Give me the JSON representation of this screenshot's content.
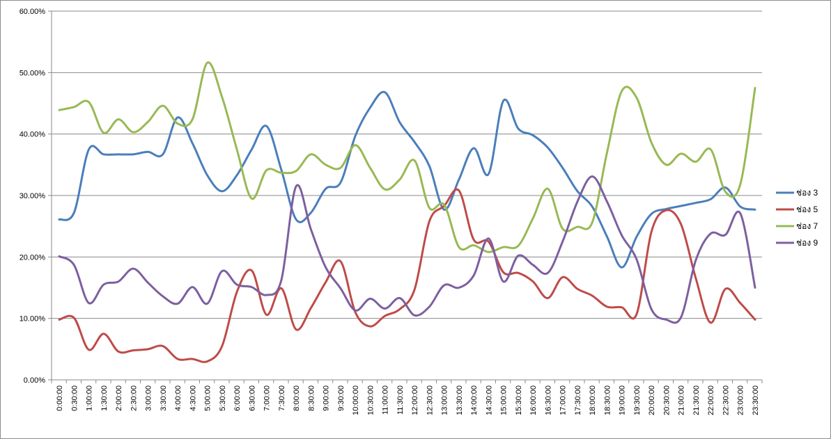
{
  "chart_data": {
    "type": "line",
    "smooth": true,
    "grid": true,
    "legend": "right",
    "ylim": [
      0,
      0.6
    ],
    "y_format": "percent_2dp",
    "y_ticks": [
      "0.00%",
      "10.00%",
      "20.00%",
      "30.00%",
      "40.00%",
      "50.00%",
      "60.00%"
    ],
    "x": [
      "0:00:00",
      "0:30:00",
      "1:00:00",
      "1:30:00",
      "2:00:00",
      "2:30:00",
      "3:00:00",
      "3:30:00",
      "4:00:00",
      "4:30:00",
      "5:00:00",
      "5:30:00",
      "6:00:00",
      "6:30:00",
      "7:00:00",
      "7:30:00",
      "8:00:00",
      "8:30:00",
      "9:00:00",
      "9:30:00",
      "10:00:00",
      "10:30:00",
      "11:00:00",
      "11:30:00",
      "12:00:00",
      "12:30:00",
      "13:00:00",
      "13:30:00",
      "14:00:00",
      "14:30:00",
      "15:00:00",
      "15:30:00",
      "16:00:00",
      "16:30:00",
      "17:00:00",
      "17:30:00",
      "18:00:00",
      "18:30:00",
      "19:00:00",
      "19:30:00",
      "20:00:00",
      "20:30:00",
      "21:00:00",
      "21:30:00",
      "22:00:00",
      "22:30:00",
      "23:00:00",
      "23:30:00"
    ],
    "series": [
      {
        "name": "ช่อง 3",
        "color": "#4a7ebb",
        "values": [
          0.261,
          0.272,
          0.375,
          0.367,
          0.367,
          0.367,
          0.371,
          0.367,
          0.427,
          0.385,
          0.333,
          0.307,
          0.333,
          0.375,
          0.413,
          0.342,
          0.261,
          0.272,
          0.311,
          0.321,
          0.397,
          0.443,
          0.468,
          0.419,
          0.387,
          0.348,
          0.277,
          0.326,
          0.377,
          0.335,
          0.454,
          0.409,
          0.398,
          0.378,
          0.345,
          0.307,
          0.282,
          0.233,
          0.183,
          0.233,
          0.27,
          0.278,
          0.283,
          0.288,
          0.294,
          0.313,
          0.282,
          0.277
        ]
      },
      {
        "name": "ช่อง 5",
        "color": "#be4b48",
        "values": [
          0.098,
          0.101,
          0.049,
          0.075,
          0.046,
          0.048,
          0.05,
          0.055,
          0.034,
          0.034,
          0.03,
          0.055,
          0.143,
          0.178,
          0.106,
          0.149,
          0.082,
          0.117,
          0.159,
          0.193,
          0.11,
          0.087,
          0.104,
          0.115,
          0.147,
          0.258,
          0.283,
          0.308,
          0.228,
          0.225,
          0.175,
          0.174,
          0.16,
          0.133,
          0.167,
          0.148,
          0.137,
          0.119,
          0.118,
          0.107,
          0.241,
          0.276,
          0.253,
          0.165,
          0.093,
          0.148,
          0.125,
          0.098
        ]
      },
      {
        "name": "ช่อง 7",
        "color": "#98b954",
        "values": [
          0.439,
          0.444,
          0.452,
          0.402,
          0.424,
          0.403,
          0.42,
          0.446,
          0.417,
          0.424,
          0.516,
          0.46,
          0.375,
          0.295,
          0.341,
          0.337,
          0.34,
          0.367,
          0.35,
          0.345,
          0.382,
          0.345,
          0.31,
          0.326,
          0.357,
          0.28,
          0.285,
          0.216,
          0.219,
          0.208,
          0.216,
          0.218,
          0.263,
          0.311,
          0.246,
          0.249,
          0.256,
          0.37,
          0.47,
          0.459,
          0.386,
          0.35,
          0.368,
          0.355,
          0.375,
          0.306,
          0.318,
          0.475
        ]
      },
      {
        "name": "ช่อง 9",
        "color": "#7d5fa0",
        "values": [
          0.201,
          0.187,
          0.125,
          0.155,
          0.16,
          0.181,
          0.158,
          0.136,
          0.124,
          0.151,
          0.124,
          0.177,
          0.155,
          0.151,
          0.138,
          0.162,
          0.315,
          0.245,
          0.183,
          0.149,
          0.113,
          0.132,
          0.116,
          0.133,
          0.105,
          0.119,
          0.154,
          0.15,
          0.17,
          0.23,
          0.16,
          0.202,
          0.187,
          0.174,
          0.225,
          0.29,
          0.331,
          0.29,
          0.235,
          0.196,
          0.115,
          0.098,
          0.102,
          0.195,
          0.238,
          0.236,
          0.271,
          0.15
        ]
      }
    ]
  }
}
